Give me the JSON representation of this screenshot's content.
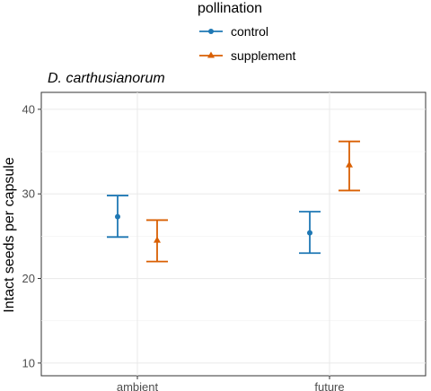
{
  "chart_data": {
    "type": "scatter",
    "title": "D. carthusianorum",
    "xlabel": "",
    "ylabel": "Intact seeds per capsule",
    "categories": [
      "ambient",
      "future"
    ],
    "ylim": [
      8.5,
      42
    ],
    "yticks": [
      10,
      20,
      30,
      40
    ],
    "grid": true,
    "legend": {
      "title": "pollination",
      "position": "top"
    },
    "series": [
      {
        "name": "control",
        "color": "#1f78b4",
        "marker": "circle",
        "values": [
          27.3,
          25.4
        ],
        "lower": [
          24.9,
          23.0
        ],
        "upper": [
          29.8,
          27.9
        ]
      },
      {
        "name": "supplement",
        "color": "#d95f02",
        "marker": "triangle",
        "values": [
          24.5,
          33.4
        ],
        "lower": [
          22.0,
          30.4
        ],
        "upper": [
          26.9,
          36.2
        ]
      }
    ]
  }
}
